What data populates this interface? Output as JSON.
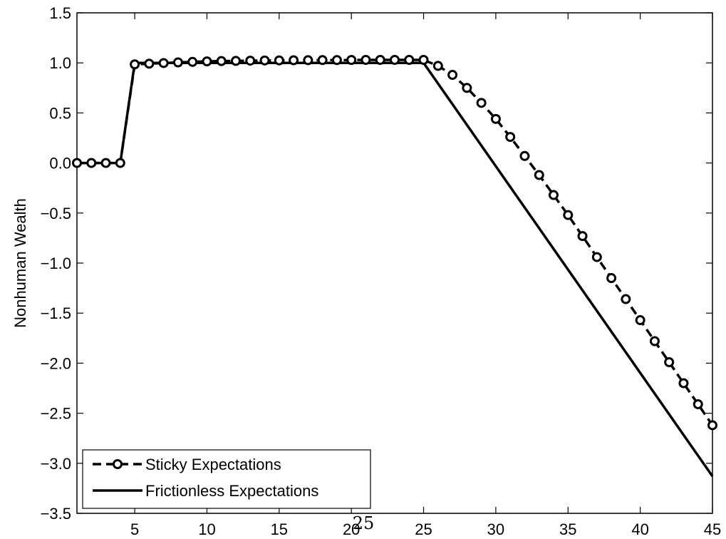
{
  "page_number": "25",
  "chart_data": {
    "type": "line",
    "title": "",
    "xlabel": "",
    "ylabel": "Nonhuman Wealth",
    "xlim": [
      1,
      45
    ],
    "ylim": [
      -3.5,
      1.5
    ],
    "x_ticks": [
      5,
      10,
      15,
      20,
      25,
      30,
      35,
      40,
      45
    ],
    "x_tick_labels": [
      "5",
      "10",
      "15",
      "20",
      "25",
      "30",
      "35",
      "40",
      "45"
    ],
    "y_ticks": [
      -3.5,
      -3.0,
      -2.5,
      -2.0,
      -1.5,
      -1.0,
      -0.5,
      0.0,
      0.5,
      1.0,
      1.5
    ],
    "y_tick_labels": [
      "−3.5",
      "−3.0",
      "−2.5",
      "−2.0",
      "−1.5",
      "−1.0",
      "−0.5",
      "0.0",
      "0.5",
      "1.0",
      "1.5"
    ],
    "grid": false,
    "legend_position": "bottom-left",
    "series": [
      {
        "name": "Sticky Expectations",
        "style": "dashed-circles",
        "color": "#000000",
        "x": [
          1,
          2,
          3,
          4,
          5,
          6,
          7,
          8,
          9,
          10,
          11,
          12,
          13,
          14,
          15,
          16,
          17,
          18,
          19,
          20,
          21,
          22,
          23,
          24,
          25,
          26,
          27,
          28,
          29,
          30,
          31,
          32,
          33,
          34,
          35,
          36,
          37,
          38,
          39,
          40,
          41,
          42,
          43,
          44,
          45
        ],
        "y": [
          0,
          0,
          0,
          0,
          0.985,
          0.992,
          0.998,
          1.005,
          1.01,
          1.015,
          1.018,
          1.02,
          1.022,
          1.024,
          1.025,
          1.026,
          1.027,
          1.028,
          1.028,
          1.029,
          1.03,
          1.03,
          1.03,
          1.03,
          1.03,
          0.97,
          0.88,
          0.75,
          0.6,
          0.44,
          0.26,
          0.07,
          -0.12,
          -0.32,
          -0.52,
          -0.73,
          -0.94,
          -1.15,
          -1.36,
          -1.57,
          -1.78,
          -1.99,
          -2.2,
          -2.41,
          -2.62
        ]
      },
      {
        "name": "Frictionless Expectations",
        "style": "solid",
        "color": "#000000",
        "x": [
          1,
          4,
          5,
          25,
          45
        ],
        "y": [
          0,
          0,
          1.0,
          1.0,
          -3.13
        ]
      }
    ]
  }
}
